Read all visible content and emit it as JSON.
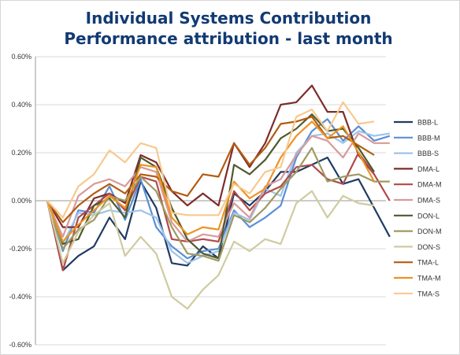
{
  "chart_data": {
    "type": "line",
    "title": "Individual Systems Contribution",
    "subtitle": "Performance attribution - last month",
    "xlabel": "",
    "ylabel": "",
    "ylim": [
      -0.006,
      0.006
    ],
    "yticks": [
      -0.006,
      -0.004,
      -0.002,
      0.0,
      0.002,
      0.004,
      0.006
    ],
    "ytick_labels": [
      "-0.60%",
      "-0.40%",
      "-0.20%",
      "0.00%",
      "0.20%",
      "0.40%",
      "0.60%"
    ],
    "x": [
      0,
      1,
      2,
      3,
      4,
      5,
      6,
      7,
      8,
      9,
      10,
      11,
      12,
      13,
      14,
      15,
      16,
      17,
      18,
      19,
      20,
      21,
      22,
      23,
      24,
      25,
      26,
      27
    ],
    "grid": "horizontal",
    "legend_position": "right",
    "series": [
      {
        "name": "BBB-L",
        "color": "#1f3b63",
        "values": [
          0.0,
          -0.0029,
          -0.0023,
          -0.0019,
          -0.0007,
          -0.0016,
          0.0008,
          -0.0003,
          -0.0026,
          -0.0027,
          -0.0019,
          -0.0024,
          0.0003,
          -0.0002,
          0.0004,
          0.0012,
          0.0012,
          0.0015,
          0.0018,
          0.0007,
          0.0009,
          -0.0003,
          -0.0015,
          null,
          null,
          null,
          null,
          null
        ]
      },
      {
        "name": "BBB-M",
        "color": "#5b8fd6",
        "values": [
          0.0,
          -0.0021,
          -0.0004,
          -0.0005,
          0.0006,
          -0.0008,
          0.0009,
          -0.0011,
          -0.0019,
          -0.0024,
          -0.0021,
          -0.002,
          -0.0004,
          -0.0011,
          -0.0007,
          -0.0002,
          0.0018,
          0.0029,
          0.0034,
          0.0025,
          0.0031,
          0.0025,
          0.0027,
          null,
          null,
          null,
          null,
          null
        ]
      },
      {
        "name": "BBB-S",
        "color": "#9ec3ea",
        "values": [
          0.0,
          -0.0018,
          -0.0005,
          -0.0006,
          -0.0004,
          -0.0005,
          -0.0004,
          -0.0007,
          -0.0021,
          -0.0026,
          -0.0023,
          -0.0021,
          -0.0005,
          -0.0008,
          0.0005,
          0.0002,
          0.002,
          0.0027,
          0.0028,
          0.0024,
          0.0029,
          0.0027,
          0.0028,
          null,
          null,
          null,
          null,
          null
        ]
      },
      {
        "name": "DMA-L",
        "color": "#7d2c29",
        "values": [
          0.0,
          -0.0011,
          -0.0011,
          0.0001,
          0.0003,
          -0.0001,
          0.0019,
          0.0016,
          0.0004,
          -0.0002,
          0.0003,
          -0.0002,
          0.0024,
          0.0014,
          0.0024,
          0.004,
          0.0041,
          0.0048,
          0.0037,
          0.0037,
          0.0019,
          0.0011,
          null,
          null,
          null,
          null,
          null,
          null
        ]
      },
      {
        "name": "DMA-M",
        "color": "#b04a4a",
        "values": [
          0.0,
          -0.0029,
          -0.0007,
          -0.0002,
          0.0003,
          -0.0004,
          0.001,
          0.0008,
          -0.0016,
          -0.0017,
          -0.0016,
          -0.0017,
          0.0004,
          -0.0004,
          0.0003,
          0.0006,
          0.0014,
          0.0015,
          0.0009,
          0.0007,
          0.002,
          0.0011,
          0.0,
          null,
          null,
          null,
          null,
          null
        ]
      },
      {
        "name": "DMA-S",
        "color": "#d89a9a",
        "values": [
          0.0,
          -0.0015,
          0.0002,
          0.0007,
          0.0009,
          0.0006,
          0.0014,
          0.0012,
          -0.0009,
          -0.0017,
          -0.0014,
          -0.0015,
          -0.0001,
          -0.0007,
          0.0006,
          0.0009,
          0.0019,
          0.0027,
          0.0025,
          0.0018,
          0.0028,
          0.0024,
          0.0024,
          null,
          null,
          null,
          null,
          null
        ]
      },
      {
        "name": "DON-L",
        "color": "#4f5a2c",
        "values": [
          0.0,
          -0.0018,
          -0.0016,
          -0.0002,
          0.0001,
          -0.0007,
          0.0018,
          0.0014,
          -0.0003,
          -0.0016,
          -0.0022,
          -0.0024,
          0.0015,
          0.0011,
          0.0017,
          0.0026,
          0.003,
          0.0036,
          0.0029,
          0.003,
          0.0022,
          0.0012,
          null,
          null,
          null,
          null,
          null,
          null
        ]
      },
      {
        "name": "DON-M",
        "color": "#9e9a61",
        "values": [
          0.0,
          -0.002,
          -0.0012,
          -0.0008,
          0.0002,
          0.0,
          0.001,
          0.0004,
          -0.0011,
          -0.0022,
          -0.0023,
          -0.0025,
          -0.0006,
          -0.0009,
          -0.0003,
          0.0005,
          0.0012,
          0.0022,
          0.0008,
          0.001,
          0.0011,
          0.0008,
          0.0008,
          null,
          null,
          null,
          null,
          null
        ]
      },
      {
        "name": "DON-S",
        "color": "#cfcba0",
        "values": [
          0.0,
          -0.0026,
          -0.0013,
          -0.0006,
          -0.0001,
          -0.0023,
          -0.0015,
          -0.0022,
          -0.004,
          -0.0045,
          -0.0037,
          -0.0031,
          -0.0017,
          -0.0021,
          -0.0016,
          -0.0018,
          -0.0001,
          0.0004,
          -0.0007,
          0.0002,
          -0.0001,
          -0.0002,
          null,
          null,
          null,
          null,
          null,
          null
        ]
      },
      {
        "name": "TMA-L",
        "color": "#b35c10",
        "values": [
          0.0,
          -0.0009,
          -0.0002,
          0.0003,
          0.0007,
          0.0003,
          0.0011,
          0.001,
          0.0004,
          0.0002,
          0.0011,
          0.001,
          0.0024,
          0.0015,
          0.0022,
          0.0032,
          0.0033,
          0.0035,
          0.0026,
          0.0027,
          0.0023,
          0.0019,
          null,
          null,
          null,
          null,
          null,
          null
        ]
      },
      {
        "name": "TMA-M",
        "color": "#ec9324",
        "values": [
          0.0,
          -0.0017,
          -0.001,
          -0.0004,
          0.0002,
          -0.0003,
          0.0015,
          0.0014,
          -0.0007,
          -0.0014,
          -0.0011,
          -0.0012,
          0.0008,
          0.0001,
          0.0005,
          0.0018,
          0.0027,
          0.0033,
          0.0026,
          0.0031,
          0.002,
          0.0008,
          null,
          null,
          null,
          null,
          null,
          null
        ]
      },
      {
        "name": "TMA-S",
        "color": "#f7c98f",
        "values": [
          0.0,
          -0.0007,
          0.0006,
          0.0011,
          0.0021,
          0.0016,
          0.0024,
          0.0022,
          -0.0005,
          -0.0006,
          -0.0006,
          -0.0006,
          0.0007,
          0.0003,
          0.0012,
          0.0014,
          0.0035,
          0.0038,
          0.0029,
          0.0041,
          0.0032,
          0.0033,
          null,
          null,
          null,
          null,
          null,
          null
        ]
      }
    ]
  }
}
